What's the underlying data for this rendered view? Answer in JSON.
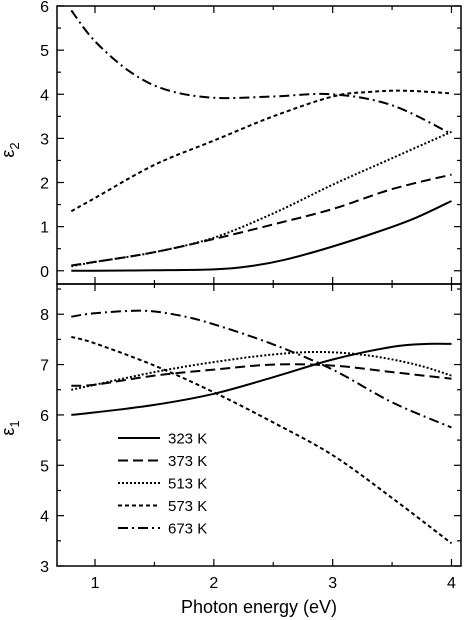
{
  "chart_data": [
    {
      "type": "line",
      "panel": "top",
      "title": "",
      "xlabel": "",
      "ylabel_main": "ε",
      "ylabel_sub": "2",
      "xlim": [
        0.68,
        4.08
      ],
      "ylim": [
        -0.3,
        6.0
      ],
      "yticks": [
        0,
        1,
        2,
        3,
        4,
        5,
        6
      ],
      "xticks": [
        1,
        2,
        3,
        4
      ],
      "series": [
        {
          "name": "323 K",
          "dash": "",
          "points": [
            [
              0.8,
              0
            ],
            [
              1.0,
              0
            ],
            [
              1.5,
              0.01
            ],
            [
              2.0,
              0.03
            ],
            [
              2.3,
              0.1
            ],
            [
              2.6,
              0.25
            ],
            [
              3.0,
              0.55
            ],
            [
              3.4,
              0.9
            ],
            [
              3.7,
              1.2
            ],
            [
              4.0,
              1.58
            ]
          ]
        },
        {
          "name": "373 K",
          "dash": "10,5",
          "points": [
            [
              0.8,
              0.12
            ],
            [
              1.0,
              0.2
            ],
            [
              1.5,
              0.42
            ],
            [
              2.0,
              0.72
            ],
            [
              2.5,
              1.05
            ],
            [
              3.0,
              1.4
            ],
            [
              3.5,
              1.85
            ],
            [
              4.0,
              2.18
            ]
          ]
        },
        {
          "name": "513 K",
          "dash": "2,2",
          "points": [
            [
              0.8,
              0.1
            ],
            [
              1.0,
              0.2
            ],
            [
              1.5,
              0.42
            ],
            [
              2.0,
              0.75
            ],
            [
              2.5,
              1.3
            ],
            [
              3.0,
              1.95
            ],
            [
              3.5,
              2.55
            ],
            [
              4.0,
              3.15
            ]
          ]
        },
        {
          "name": "573 K",
          "dash": "4,3",
          "points": [
            [
              0.8,
              1.35
            ],
            [
              1.0,
              1.65
            ],
            [
              1.5,
              2.4
            ],
            [
              2.0,
              2.95
            ],
            [
              2.5,
              3.5
            ],
            [
              3.0,
              3.95
            ],
            [
              3.3,
              4.05
            ],
            [
              3.6,
              4.08
            ],
            [
              4.0,
              4.02
            ]
          ]
        },
        {
          "name": "673 K",
          "dash": "10,4,2,4",
          "points": [
            [
              0.8,
              5.9
            ],
            [
              1.0,
              5.2
            ],
            [
              1.3,
              4.5
            ],
            [
              1.6,
              4.1
            ],
            [
              2.0,
              3.92
            ],
            [
              2.5,
              3.95
            ],
            [
              3.0,
              4.0
            ],
            [
              3.5,
              3.75
            ],
            [
              4.0,
              3.1
            ]
          ]
        }
      ]
    },
    {
      "type": "line",
      "panel": "bottom",
      "title": "",
      "xlabel": "Photon energy (eV)",
      "ylabel_main": "ε",
      "ylabel_sub": "1",
      "xlim": [
        0.68,
        4.08
      ],
      "ylim": [
        3.0,
        8.6
      ],
      "yticks": [
        3,
        4,
        5,
        6,
        7,
        8
      ],
      "xticks": [
        1,
        2,
        3,
        4
      ],
      "xtick_labels": [
        "1",
        "2",
        "3",
        "4"
      ],
      "series": [
        {
          "name": "323 K",
          "dash": "",
          "points": [
            [
              0.8,
              6.0
            ],
            [
              1.0,
              6.05
            ],
            [
              1.5,
              6.2
            ],
            [
              2.0,
              6.42
            ],
            [
              2.5,
              6.75
            ],
            [
              3.0,
              7.1
            ],
            [
              3.5,
              7.35
            ],
            [
              3.8,
              7.41
            ],
            [
              4.0,
              7.41
            ]
          ]
        },
        {
          "name": "373 K",
          "dash": "10,5",
          "points": [
            [
              0.8,
              6.58
            ],
            [
              1.0,
              6.6
            ],
            [
              1.5,
              6.78
            ],
            [
              2.0,
              6.9
            ],
            [
              2.5,
              7.0
            ],
            [
              3.0,
              6.98
            ],
            [
              3.5,
              6.85
            ],
            [
              4.0,
              6.72
            ]
          ]
        },
        {
          "name": "513 K",
          "dash": "2,2",
          "points": [
            [
              0.8,
              6.5
            ],
            [
              1.0,
              6.6
            ],
            [
              1.5,
              6.85
            ],
            [
              2.0,
              7.05
            ],
            [
              2.5,
              7.2
            ],
            [
              2.9,
              7.25
            ],
            [
              3.3,
              7.18
            ],
            [
              3.7,
              7.0
            ],
            [
              4.0,
              6.78
            ]
          ]
        },
        {
          "name": "573 K",
          "dash": "4,3",
          "points": [
            [
              0.8,
              7.55
            ],
            [
              1.0,
              7.42
            ],
            [
              1.5,
              6.98
            ],
            [
              2.0,
              6.45
            ],
            [
              2.5,
              5.85
            ],
            [
              3.0,
              5.2
            ],
            [
              3.5,
              4.35
            ],
            [
              4.0,
              3.45
            ]
          ]
        },
        {
          "name": "673 K",
          "dash": "10,4,2,4",
          "points": [
            [
              0.8,
              7.95
            ],
            [
              1.0,
              8.02
            ],
            [
              1.4,
              8.07
            ],
            [
              1.7,
              7.98
            ],
            [
              2.0,
              7.8
            ],
            [
              2.5,
              7.4
            ],
            [
              3.0,
              6.9
            ],
            [
              3.5,
              6.25
            ],
            [
              4.0,
              5.75
            ]
          ]
        }
      ],
      "legend_position": "lower-left"
    }
  ]
}
